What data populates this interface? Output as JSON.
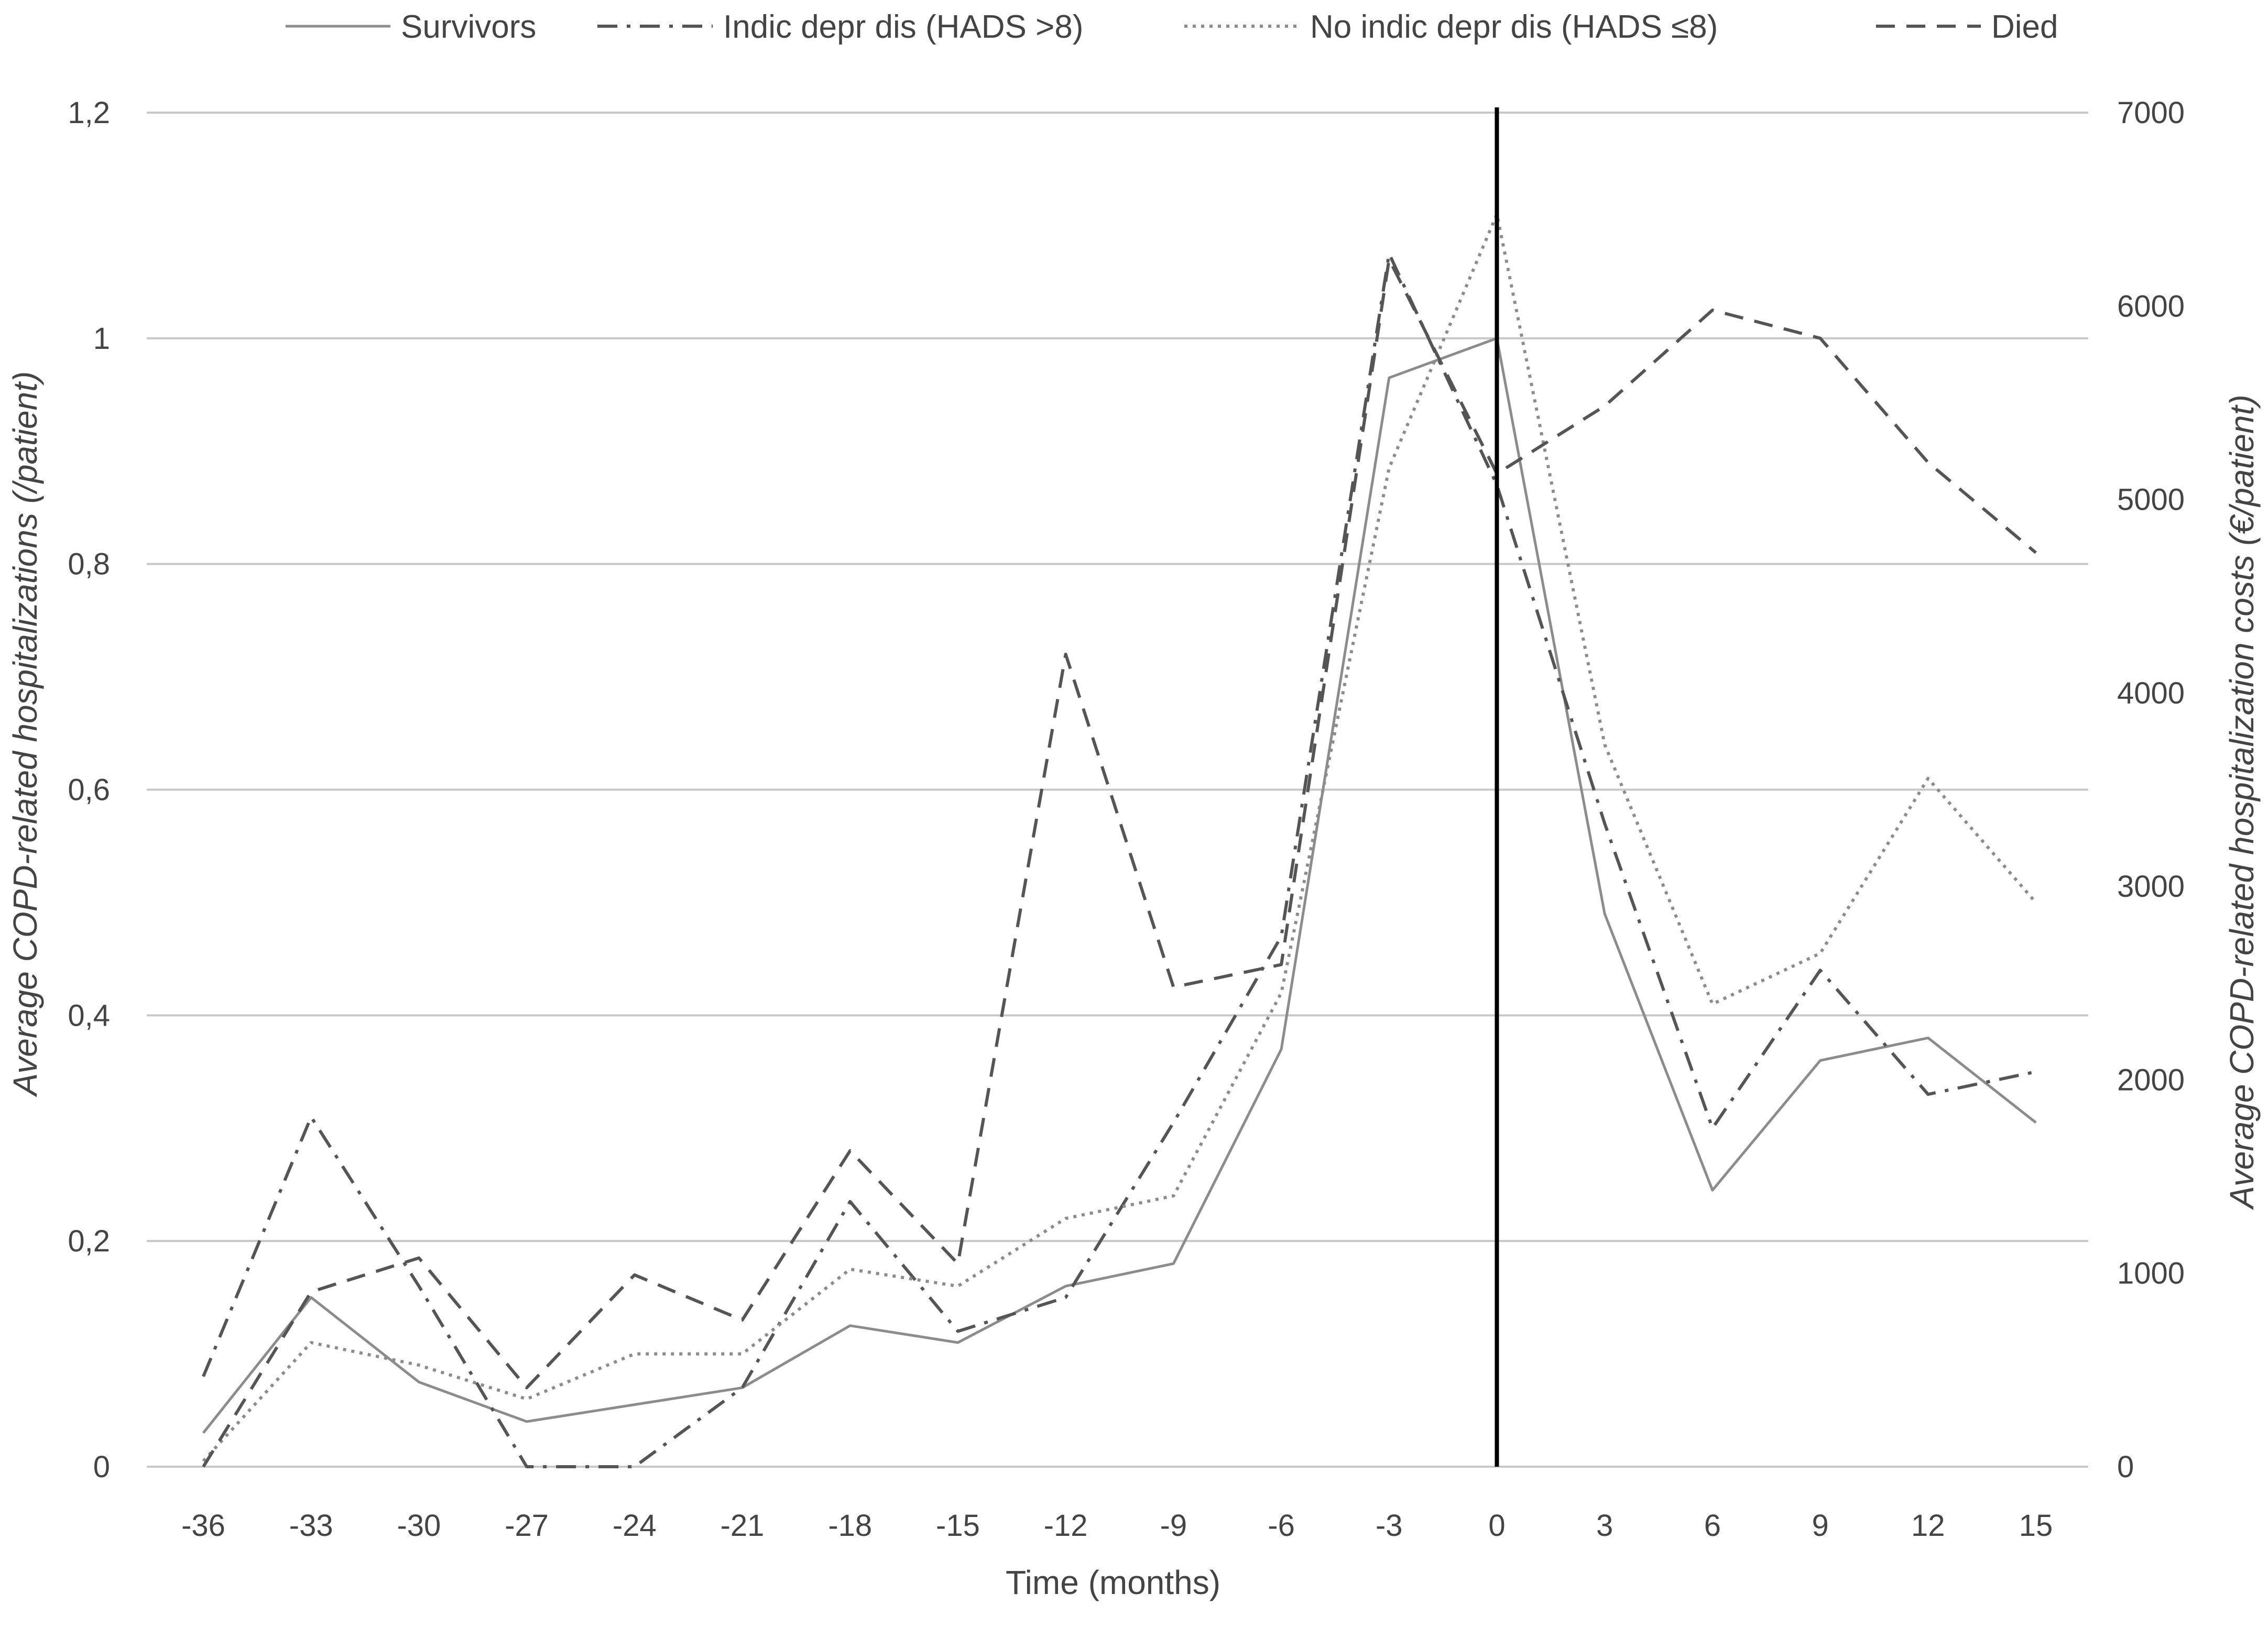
{
  "chart_data": {
    "type": "line",
    "x": [
      -36,
      -33,
      -30,
      -27,
      -24,
      -21,
      -18,
      -15,
      -12,
      -9,
      -6,
      -3,
      0,
      3,
      6,
      9,
      12,
      15
    ],
    "xlabel": "Time (months)",
    "ylabel_left": "Average COPD-related hospitalizations (/patient)",
    "ylabel_right": "Average COPD-related hospitalization costs (€/patient)",
    "ylim_left": [
      0,
      1.2
    ],
    "ylim_right": [
      0,
      7000
    ],
    "left_ticks": [
      "0",
      "0,2",
      "0,4",
      "0,6",
      "0,8",
      "1",
      "1,2"
    ],
    "right_ticks": [
      "0",
      "1000",
      "2000",
      "3000",
      "4000",
      "5000",
      "6000",
      "7000"
    ],
    "grid": true,
    "legend_position": "top",
    "vertical_marker_x": 0,
    "series": [
      {
        "name": "Survivors",
        "style": "solid",
        "color": "#8c8c8c",
        "values": [
          0.03,
          0.15,
          0.075,
          0.04,
          0.055,
          0.07,
          0.125,
          0.11,
          0.16,
          0.18,
          0.37,
          0.965,
          1.0,
          0.49,
          0.245,
          0.36,
          0.38,
          0.305
        ]
      },
      {
        "name": "Indic depr dis (HADS >8)",
        "style": "dashdot",
        "color": "#555555",
        "values": [
          0.08,
          0.31,
          0.16,
          0.0,
          0.0,
          0.07,
          0.235,
          0.12,
          0.15,
          0.305,
          0.47,
          1.075,
          0.87,
          0.57,
          0.3,
          0.44,
          0.33,
          0.35
        ]
      },
      {
        "name": "No indic depr dis (HADS ≤8)",
        "style": "dotted",
        "color": "#8c8c8c",
        "values": [
          0.005,
          0.11,
          0.09,
          0.06,
          0.1,
          0.1,
          0.175,
          0.16,
          0.22,
          0.24,
          0.42,
          0.885,
          1.11,
          0.64,
          0.41,
          0.455,
          0.61,
          0.5
        ]
      },
      {
        "name": "Died",
        "style": "dashed",
        "color": "#555555",
        "values": [
          0.0,
          0.155,
          0.185,
          0.07,
          0.17,
          0.13,
          0.28,
          0.18,
          0.72,
          0.425,
          0.445,
          1.07,
          0.88,
          0.94,
          1.025,
          1.0,
          0.89,
          0.81
        ]
      }
    ]
  }
}
